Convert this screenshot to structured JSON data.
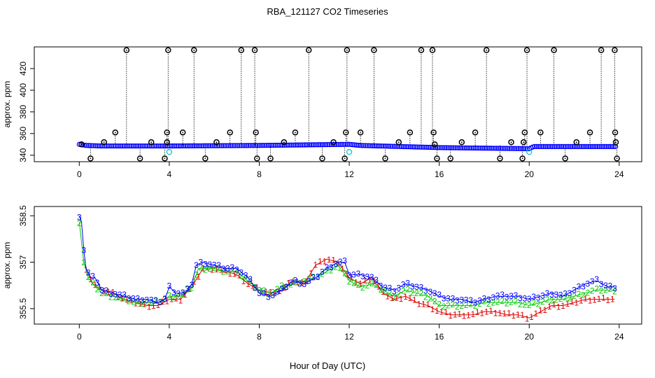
{
  "title": "RBA_121127  CO2 Timeseries",
  "xlabel": "Hour of Day (UTC)",
  "colors": {
    "ring": "#000000",
    "blue": "#0000ff",
    "green": "#00cc00",
    "red": "#dd0000",
    "cyan": "#00cccc",
    "axis": "#000000"
  },
  "chart_data": [
    {
      "type": "scatter",
      "name": "top",
      "ylabel": "approx. ppm",
      "xlim": [
        -2,
        25
      ],
      "ylim": [
        334,
        440
      ],
      "xticks": [
        0,
        4,
        8,
        12,
        16,
        20,
        24
      ],
      "yticks": [
        340,
        360,
        380,
        400,
        420
      ],
      "baseline": [
        [
          0,
          350
        ],
        [
          0.3,
          349
        ],
        [
          1,
          348.5
        ],
        [
          4,
          348.5
        ],
        [
          8,
          349
        ],
        [
          12,
          350
        ],
        [
          12.5,
          349
        ],
        [
          16,
          347
        ],
        [
          20,
          346
        ],
        [
          20.2,
          348
        ],
        [
          23.8,
          348
        ]
      ],
      "spikes": [
        {
          "x": 0.1,
          "y": 350
        },
        {
          "x": 0.5,
          "y": 337
        },
        {
          "x": 1.1,
          "y": 352
        },
        {
          "x": 1.6,
          "y": 361
        },
        {
          "x": 2.1,
          "y": 437
        },
        {
          "x": 2.7,
          "y": 337
        },
        {
          "x": 3.2,
          "y": 352
        },
        {
          "x": 3.8,
          "y": 337
        },
        {
          "x": 3.9,
          "y": 352
        },
        {
          "x": 3.9,
          "y": 361
        },
        {
          "x": 3.95,
          "y": 437
        },
        {
          "x": 4.6,
          "y": 361
        },
        {
          "x": 5.1,
          "y": 437
        },
        {
          "x": 5.6,
          "y": 337
        },
        {
          "x": 6.1,
          "y": 352
        },
        {
          "x": 6.7,
          "y": 361
        },
        {
          "x": 7.2,
          "y": 437
        },
        {
          "x": 7.8,
          "y": 437
        },
        {
          "x": 7.85,
          "y": 361
        },
        {
          "x": 7.9,
          "y": 337
        },
        {
          "x": 8.5,
          "y": 337
        },
        {
          "x": 9.1,
          "y": 352
        },
        {
          "x": 9.6,
          "y": 361
        },
        {
          "x": 10.2,
          "y": 437
        },
        {
          "x": 10.8,
          "y": 337
        },
        {
          "x": 11.3,
          "y": 352
        },
        {
          "x": 11.8,
          "y": 337
        },
        {
          "x": 11.85,
          "y": 361
        },
        {
          "x": 11.9,
          "y": 437
        },
        {
          "x": 12.5,
          "y": 361
        },
        {
          "x": 13.1,
          "y": 437
        },
        {
          "x": 13.6,
          "y": 337
        },
        {
          "x": 14.2,
          "y": 352
        },
        {
          "x": 14.7,
          "y": 361
        },
        {
          "x": 15.2,
          "y": 437
        },
        {
          "x": 15.7,
          "y": 437
        },
        {
          "x": 15.75,
          "y": 361
        },
        {
          "x": 15.8,
          "y": 350
        },
        {
          "x": 15.9,
          "y": 337
        },
        {
          "x": 16.5,
          "y": 337
        },
        {
          "x": 17.0,
          "y": 352
        },
        {
          "x": 17.6,
          "y": 361
        },
        {
          "x": 18.1,
          "y": 437
        },
        {
          "x": 18.7,
          "y": 337
        },
        {
          "x": 19.2,
          "y": 352
        },
        {
          "x": 19.7,
          "y": 337
        },
        {
          "x": 19.75,
          "y": 352
        },
        {
          "x": 19.8,
          "y": 361
        },
        {
          "x": 19.9,
          "y": 437
        },
        {
          "x": 20.5,
          "y": 361
        },
        {
          "x": 21.1,
          "y": 437
        },
        {
          "x": 21.6,
          "y": 337
        },
        {
          "x": 22.1,
          "y": 352
        },
        {
          "x": 22.7,
          "y": 361
        },
        {
          "x": 23.2,
          "y": 437
        },
        {
          "x": 23.8,
          "y": 437
        },
        {
          "x": 23.82,
          "y": 361
        },
        {
          "x": 23.85,
          "y": 352
        },
        {
          "x": 23.9,
          "y": 337
        }
      ],
      "cyan_points": [
        {
          "x": 4.0,
          "y": 343
        },
        {
          "x": 12.0,
          "y": 343
        },
        {
          "x": 20.0,
          "y": 343
        }
      ]
    },
    {
      "type": "line",
      "name": "bottom",
      "ylabel": "approx. ppm",
      "xlim": [
        -2,
        25
      ],
      "ylim": [
        355.0,
        358.8
      ],
      "xticks": [
        0,
        4,
        8,
        12,
        16,
        20,
        24
      ],
      "yticks": [
        355.5,
        357.0,
        358.5
      ],
      "series": [
        {
          "name": "3",
          "symbol": "3",
          "color": "#0000ff",
          "points": [
            [
              0,
              358.5
            ],
            [
              0.1,
              358.3
            ],
            [
              0.2,
              357.4
            ],
            [
              0.3,
              356.8
            ],
            [
              0.5,
              356.5
            ],
            [
              0.7,
              356.5
            ],
            [
              1.0,
              356.1
            ],
            [
              1.5,
              356.0
            ],
            [
              2.0,
              355.9
            ],
            [
              2.5,
              355.8
            ],
            [
              3.0,
              355.8
            ],
            [
              3.5,
              355.7
            ],
            [
              3.8,
              355.8
            ],
            [
              4.0,
              356.2
            ],
            [
              4.3,
              356.0
            ],
            [
              4.7,
              356.0
            ],
            [
              5.0,
              356.3
            ],
            [
              5.2,
              356.9
            ],
            [
              5.5,
              357.0
            ],
            [
              6.0,
              356.9
            ],
            [
              6.5,
              356.8
            ],
            [
              7.0,
              356.8
            ],
            [
              7.5,
              356.5
            ],
            [
              8.0,
              356.0
            ],
            [
              8.5,
              355.9
            ],
            [
              9.0,
              356.1
            ],
            [
              9.5,
              356.4
            ],
            [
              10.0,
              356.3
            ],
            [
              10.5,
              356.5
            ],
            [
              11.0,
              356.8
            ],
            [
              11.5,
              357.0
            ],
            [
              11.8,
              357.0
            ],
            [
              12.0,
              356.6
            ],
            [
              12.5,
              356.6
            ],
            [
              13.0,
              356.5
            ],
            [
              13.5,
              356.2
            ],
            [
              14.0,
              356.1
            ],
            [
              14.5,
              356.3
            ],
            [
              15.0,
              356.2
            ],
            [
              15.5,
              356.1
            ],
            [
              16.0,
              355.9
            ],
            [
              16.5,
              355.8
            ],
            [
              17.0,
              355.8
            ],
            [
              17.5,
              355.7
            ],
            [
              18.0,
              355.8
            ],
            [
              18.5,
              355.9
            ],
            [
              19.0,
              355.9
            ],
            [
              19.5,
              355.9
            ],
            [
              20.0,
              355.8
            ],
            [
              20.5,
              355.9
            ],
            [
              21.0,
              356.0
            ],
            [
              21.5,
              355.9
            ],
            [
              22.0,
              356.1
            ],
            [
              22.5,
              356.3
            ],
            [
              23.0,
              356.4
            ],
            [
              23.5,
              356.2
            ],
            [
              23.8,
              356.2
            ]
          ]
        },
        {
          "name": "2",
          "symbol": "2",
          "color": "#00cc00",
          "points": [
            [
              0,
              358.3
            ],
            [
              0.2,
              357.0
            ],
            [
              0.4,
              356.5
            ],
            [
              0.6,
              356.3
            ],
            [
              1.0,
              356.0
            ],
            [
              1.5,
              355.9
            ],
            [
              2.0,
              355.8
            ],
            [
              2.5,
              355.7
            ],
            [
              3.0,
              355.7
            ],
            [
              3.5,
              355.7
            ],
            [
              4.0,
              355.9
            ],
            [
              4.5,
              355.9
            ],
            [
              5.0,
              356.2
            ],
            [
              5.3,
              356.8
            ],
            [
              6.0,
              356.8
            ],
            [
              6.5,
              356.7
            ],
            [
              7.0,
              356.7
            ],
            [
              7.5,
              356.4
            ],
            [
              8.0,
              356.1
            ],
            [
              8.5,
              356.0
            ],
            [
              9.0,
              356.2
            ],
            [
              9.5,
              356.3
            ],
            [
              10.0,
              356.4
            ],
            [
              10.5,
              356.5
            ],
            [
              11.0,
              356.7
            ],
            [
              11.5,
              356.9
            ],
            [
              12.0,
              356.4
            ],
            [
              12.5,
              356.2
            ],
            [
              13.0,
              356.3
            ],
            [
              13.5,
              356.1
            ],
            [
              14.0,
              355.9
            ],
            [
              14.5,
              356.1
            ],
            [
              15.0,
              356.0
            ],
            [
              15.5,
              355.9
            ],
            [
              16.0,
              355.6
            ],
            [
              16.5,
              355.6
            ],
            [
              17.0,
              355.6
            ],
            [
              17.5,
              355.6
            ],
            [
              18.0,
              355.7
            ],
            [
              18.5,
              355.7
            ],
            [
              19.0,
              355.7
            ],
            [
              19.5,
              355.7
            ],
            [
              20.0,
              355.6
            ],
            [
              20.5,
              355.7
            ],
            [
              21.0,
              355.8
            ],
            [
              21.5,
              355.8
            ],
            [
              22.0,
              355.9
            ],
            [
              22.5,
              356.0
            ],
            [
              23.0,
              356.1
            ],
            [
              23.5,
              356.1
            ],
            [
              23.8,
              356.1
            ]
          ]
        },
        {
          "name": "1",
          "symbol": "1",
          "color": "#dd0000",
          "points": [
            [
              0.3,
              356.8
            ],
            [
              0.6,
              356.3
            ],
            [
              1.0,
              356.1
            ],
            [
              1.5,
              356.0
            ],
            [
              2.0,
              355.8
            ],
            [
              2.5,
              355.7
            ],
            [
              3.0,
              355.6
            ],
            [
              3.5,
              355.6
            ],
            [
              4.0,
              355.8
            ],
            [
              4.5,
              355.8
            ],
            [
              5.0,
              356.2
            ],
            [
              5.5,
              356.8
            ],
            [
              6.0,
              356.8
            ],
            [
              6.5,
              356.7
            ],
            [
              7.0,
              356.6
            ],
            [
              7.5,
              356.3
            ],
            [
              8.0,
              356.1
            ],
            [
              8.5,
              356.0
            ],
            [
              9.0,
              356.1
            ],
            [
              9.5,
              356.4
            ],
            [
              10.0,
              356.3
            ],
            [
              10.5,
              356.9
            ],
            [
              11.0,
              357.1
            ],
            [
              11.5,
              357.0
            ],
            [
              12.0,
              356.5
            ],
            [
              12.5,
              356.3
            ],
            [
              13.0,
              356.5
            ],
            [
              13.5,
              356.0
            ],
            [
              14.0,
              355.8
            ],
            [
              14.5,
              355.9
            ],
            [
              15.0,
              355.7
            ],
            [
              15.5,
              355.6
            ],
            [
              16.0,
              355.4
            ],
            [
              16.5,
              355.3
            ],
            [
              17.0,
              355.3
            ],
            [
              17.5,
              355.3
            ],
            [
              18.0,
              355.4
            ],
            [
              18.5,
              355.4
            ],
            [
              19.0,
              355.3
            ],
            [
              19.5,
              355.3
            ],
            [
              20.0,
              355.2
            ],
            [
              20.5,
              355.4
            ],
            [
              21.0,
              355.6
            ],
            [
              21.5,
              355.6
            ],
            [
              22.0,
              355.7
            ],
            [
              22.5,
              355.8
            ],
            [
              23.0,
              355.8
            ],
            [
              23.5,
              355.8
            ],
            [
              23.8,
              355.8
            ]
          ]
        }
      ]
    }
  ]
}
